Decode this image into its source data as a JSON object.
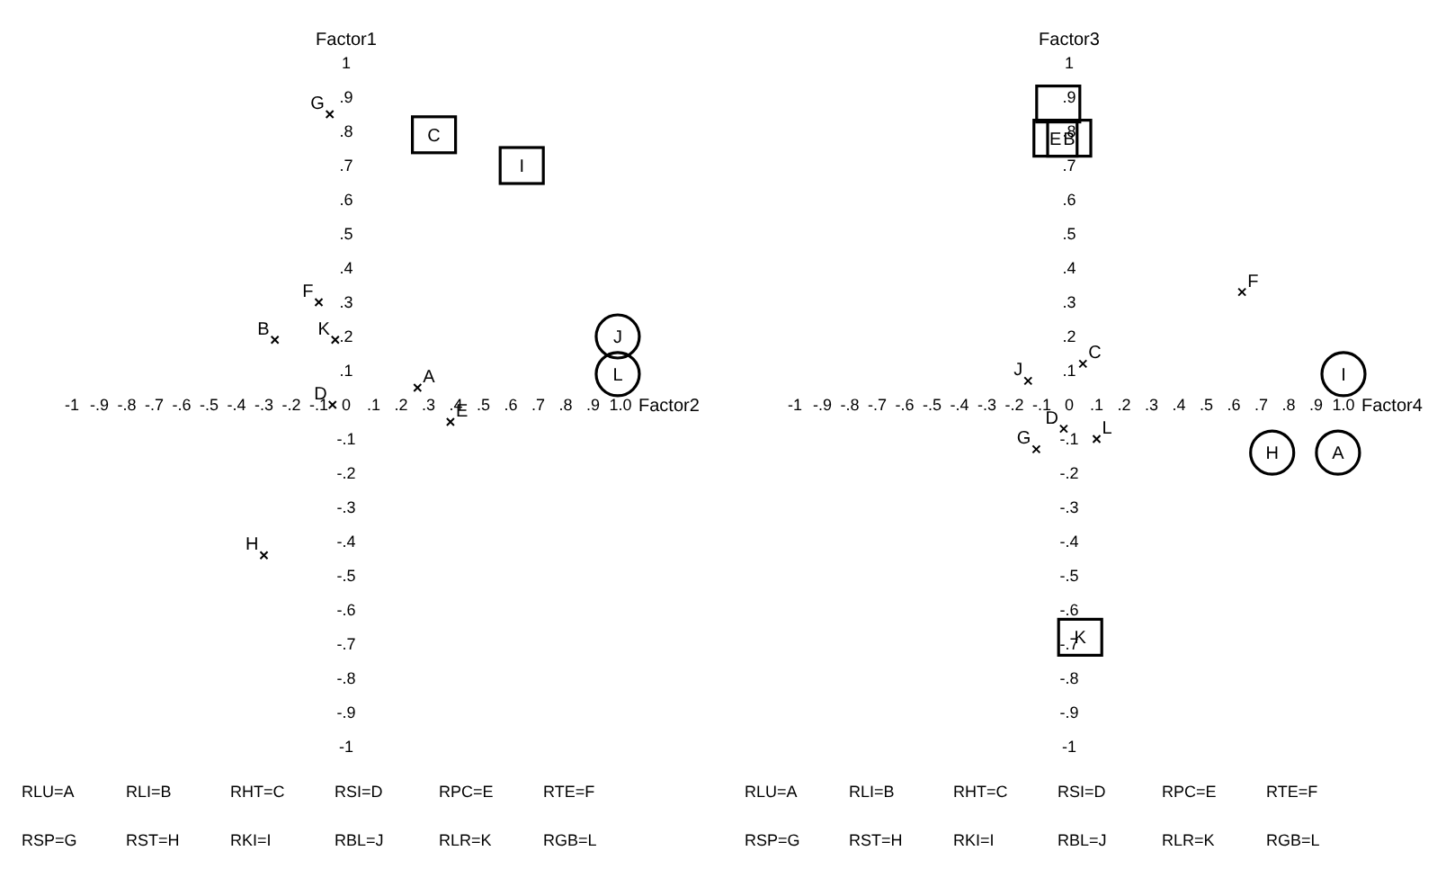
{
  "chart_data": [
    {
      "type": "scatter",
      "xlabel": "Factor2",
      "ylabel": "Factor1",
      "xlim": [
        -1,
        1
      ],
      "ylim": [
        -1,
        1
      ],
      "xticks": [
        {
          "value": -1,
          "label": "-1"
        },
        {
          "value": -0.9,
          "label": "-.9"
        },
        {
          "value": -0.8,
          "label": "-.8"
        },
        {
          "value": -0.7,
          "label": "-.7"
        },
        {
          "value": -0.6,
          "label": "-.6"
        },
        {
          "value": -0.5,
          "label": "-.5"
        },
        {
          "value": -0.4,
          "label": "-.4"
        },
        {
          "value": -0.3,
          "label": "-.3"
        },
        {
          "value": -0.2,
          "label": "-.2"
        },
        {
          "value": -0.1,
          "label": "-.1"
        },
        0,
        {
          "value": 0.1,
          "label": ".1"
        },
        {
          "value": 0.2,
          "label": ".2"
        },
        {
          "value": 0.3,
          "label": ".3"
        },
        {
          "value": 0.4,
          "label": ".4"
        },
        {
          "value": 0.5,
          "label": ".5"
        },
        {
          "value": 0.6,
          "label": ".6"
        },
        {
          "value": 0.7,
          "label": ".7"
        },
        {
          "value": 0.8,
          "label": ".8"
        },
        {
          "value": 0.9,
          "label": ".9"
        },
        {
          "value": 1,
          "label": "1.0"
        }
      ],
      "yticks": [
        1,
        {
          "value": 0.9,
          "label": ".9"
        },
        {
          "value": 0.8,
          "label": ".8"
        },
        {
          "value": 0.7,
          "label": ".7"
        },
        {
          "value": 0.6,
          "label": ".6"
        },
        {
          "value": 0.5,
          "label": ".5"
        },
        {
          "value": 0.4,
          "label": ".4"
        },
        {
          "value": 0.3,
          "label": ".3"
        },
        {
          "value": 0.2,
          "label": ".2"
        },
        {
          "value": 0.1,
          "label": ".1"
        },
        {
          "value": -0.1,
          "label": "-.1"
        },
        {
          "value": -0.2,
          "label": "-.2"
        },
        {
          "value": -0.3,
          "label": "-.3"
        },
        {
          "value": -0.4,
          "label": "-.4"
        },
        {
          "value": -0.5,
          "label": "-.5"
        },
        {
          "value": -0.6,
          "label": "-.6"
        },
        {
          "value": -0.7,
          "label": "-.7"
        },
        {
          "value": -0.8,
          "label": "-.8"
        },
        {
          "value": -0.9,
          "label": "-.9"
        },
        {
          "value": -1,
          "label": "-1"
        }
      ],
      "series": [
        {
          "color": "#000000",
          "marker": "cross",
          "x": [
            -0.06,
            -0.1,
            -0.26,
            -0.04,
            0.26,
            0.38,
            -0.05,
            -0.3
          ],
          "values": [
            0.85,
            0.3,
            0.19,
            0.19,
            0.05,
            -0.05,
            0,
            -0.44
          ],
          "value_labels": [
            "G",
            "F",
            "B",
            "K",
            "A",
            "E",
            "D",
            "H"
          ]
        },
        {
          "color": "#000000",
          "marker": "square",
          "x": [
            0.32,
            0.64
          ],
          "values": [
            0.79,
            0.7
          ],
          "value_labels": [
            "C",
            "I"
          ]
        },
        {
          "color": "#000000",
          "marker": "circle",
          "x": [
            0.99,
            0.99
          ],
          "values": [
            0.2,
            0.09
          ],
          "value_labels": [
            "J",
            "L"
          ]
        }
      ],
      "annotations": [
        "RLU=A",
        "RLI=B",
        "RHT=C",
        "RSI=D",
        "RPC=E",
        "RTE=F",
        "RSP=G",
        "RST=H",
        "RKI=I",
        "RBL=J",
        "RLR=K",
        "RGB=L"
      ]
    },
    {
      "type": "scatter",
      "xlabel": "Factor4",
      "ylabel": "Factor3",
      "xlim": [
        -1,
        1
      ],
      "ylim": [
        -1,
        1
      ],
      "xticks": [
        {
          "value": -1,
          "label": "-1"
        },
        {
          "value": -0.9,
          "label": "-.9"
        },
        {
          "value": -0.8,
          "label": "-.8"
        },
        {
          "value": -0.7,
          "label": "-.7"
        },
        {
          "value": -0.6,
          "label": "-.6"
        },
        {
          "value": -0.5,
          "label": "-.5"
        },
        {
          "value": -0.4,
          "label": "-.4"
        },
        {
          "value": -0.3,
          "label": "-.3"
        },
        {
          "value": -0.2,
          "label": "-.2"
        },
        {
          "value": -0.1,
          "label": "-.1"
        },
        0,
        {
          "value": 0.1,
          "label": ".1"
        },
        {
          "value": 0.2,
          "label": ".2"
        },
        {
          "value": 0.3,
          "label": ".3"
        },
        {
          "value": 0.4,
          "label": ".4"
        },
        {
          "value": 0.5,
          "label": ".5"
        },
        {
          "value": 0.6,
          "label": ".6"
        },
        {
          "value": 0.7,
          "label": ".7"
        },
        {
          "value": 0.8,
          "label": ".8"
        },
        {
          "value": 0.9,
          "label": ".9"
        },
        {
          "value": 1,
          "label": "1.0"
        }
      ],
      "yticks": [
        1,
        {
          "value": 0.9,
          "label": ".9"
        },
        {
          "value": 0.8,
          "label": ".8"
        },
        {
          "value": 0.7,
          "label": ".7"
        },
        {
          "value": 0.6,
          "label": ".6"
        },
        {
          "value": 0.5,
          "label": ".5"
        },
        {
          "value": 0.4,
          "label": ".4"
        },
        {
          "value": 0.3,
          "label": ".3"
        },
        {
          "value": 0.2,
          "label": ".2"
        },
        {
          "value": 0.1,
          "label": ".1"
        },
        {
          "value": -0.1,
          "label": "-.1"
        },
        {
          "value": -0.2,
          "label": "-.2"
        },
        {
          "value": -0.3,
          "label": "-.3"
        },
        {
          "value": -0.4,
          "label": "-.4"
        },
        {
          "value": -0.5,
          "label": "-.5"
        },
        {
          "value": -0.6,
          "label": "-.6"
        },
        {
          "value": -0.7,
          "label": "-.7"
        },
        {
          "value": -0.8,
          "label": "-.8"
        },
        {
          "value": -0.9,
          "label": "-.9"
        },
        {
          "value": -1,
          "label": "-1"
        }
      ],
      "series": [
        {
          "color": "#000000",
          "marker": "cross",
          "x": [
            0.63,
            0.05,
            -0.15,
            -0.02,
            -0.12,
            0.1
          ],
          "values": [
            0.33,
            0.12,
            0.07,
            -0.07,
            -0.13,
            -0.1
          ],
          "value_labels": [
            "F",
            "C",
            "J",
            "D",
            "G",
            "L"
          ]
        },
        {
          "color": "#000000",
          "marker": "square",
          "x": [
            -0.04,
            -0.05,
            0,
            0.04
          ],
          "values": [
            0.88,
            0.78,
            0.78,
            -0.68
          ],
          "value_labels": [
            null,
            "E",
            "B",
            "K"
          ]
        },
        {
          "color": "#000000",
          "marker": "circle",
          "x": [
            1,
            0.74,
            0.98
          ],
          "values": [
            0.09,
            -0.14,
            -0.14
          ],
          "value_labels": [
            "I",
            "H",
            "A"
          ]
        }
      ],
      "annotations": [
        "RLU=A",
        "RLI=B",
        "RHT=C",
        "RSI=D",
        "RPC=E",
        "RTE=F",
        "RSP=G",
        "RST=H",
        "RKI=I",
        "RBL=J",
        "RLR=K",
        "RGB=L"
      ]
    }
  ]
}
